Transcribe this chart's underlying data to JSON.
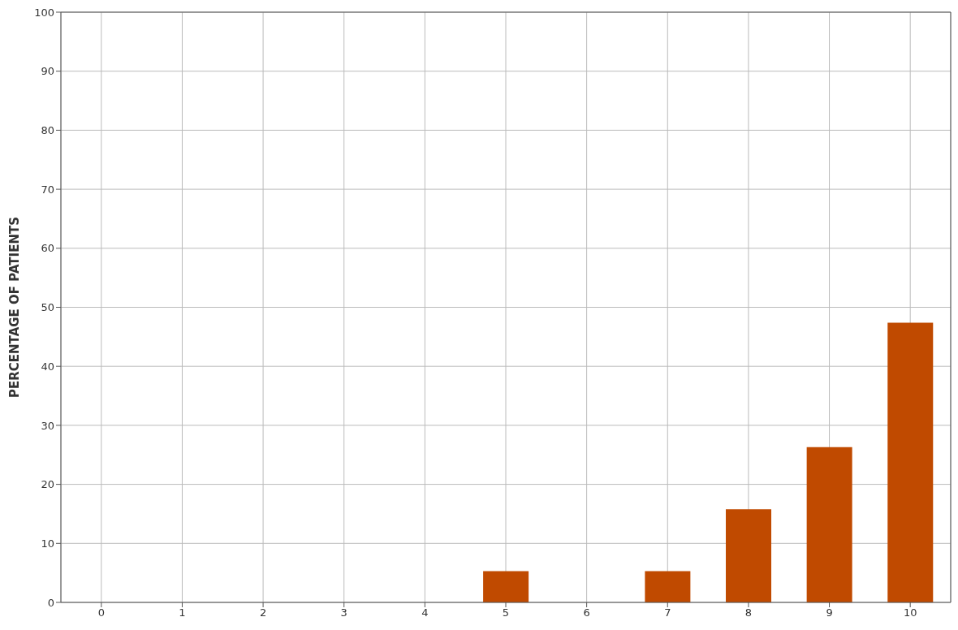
{
  "chart_data": {
    "type": "bar",
    "ylabel": "PERCENTAGE OF PATIENTS",
    "categories": [
      "0",
      "1",
      "2",
      "3",
      "4",
      "5",
      "6",
      "7",
      "8",
      "9",
      "10"
    ],
    "values": [
      0,
      0,
      0,
      0,
      0,
      5.3,
      0,
      5.3,
      15.8,
      26.3,
      47.4
    ],
    "color": "#c04a00",
    "ylim": [
      0,
      100
    ],
    "yticks": [
      0,
      10,
      20,
      30,
      40,
      50,
      60,
      70,
      80,
      90,
      100
    ],
    "grid": true
  }
}
